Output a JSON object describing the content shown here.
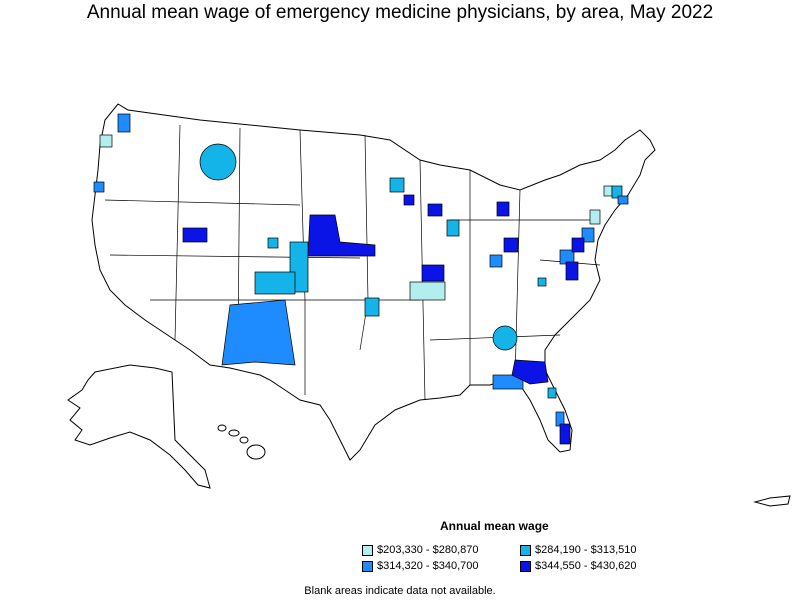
{
  "title": "Annual mean wage of emergency medicine physicians, by area, May 2022",
  "legend": {
    "title": "Annual mean wage",
    "items": [
      {
        "label": "$203,330 - $280,870",
        "color": "#b3eeee"
      },
      {
        "label": "$284,190 - $313,510",
        "color": "#14b4e8"
      },
      {
        "label": "$314,320 - $340,700",
        "color": "#1e8cff"
      },
      {
        "label": "$344,550 - $430,620",
        "color": "#0a14e6"
      }
    ]
  },
  "note": "Blank areas indicate data not available.",
  "colors": {
    "border": "#000000",
    "no_data": "#ffffff"
  }
}
